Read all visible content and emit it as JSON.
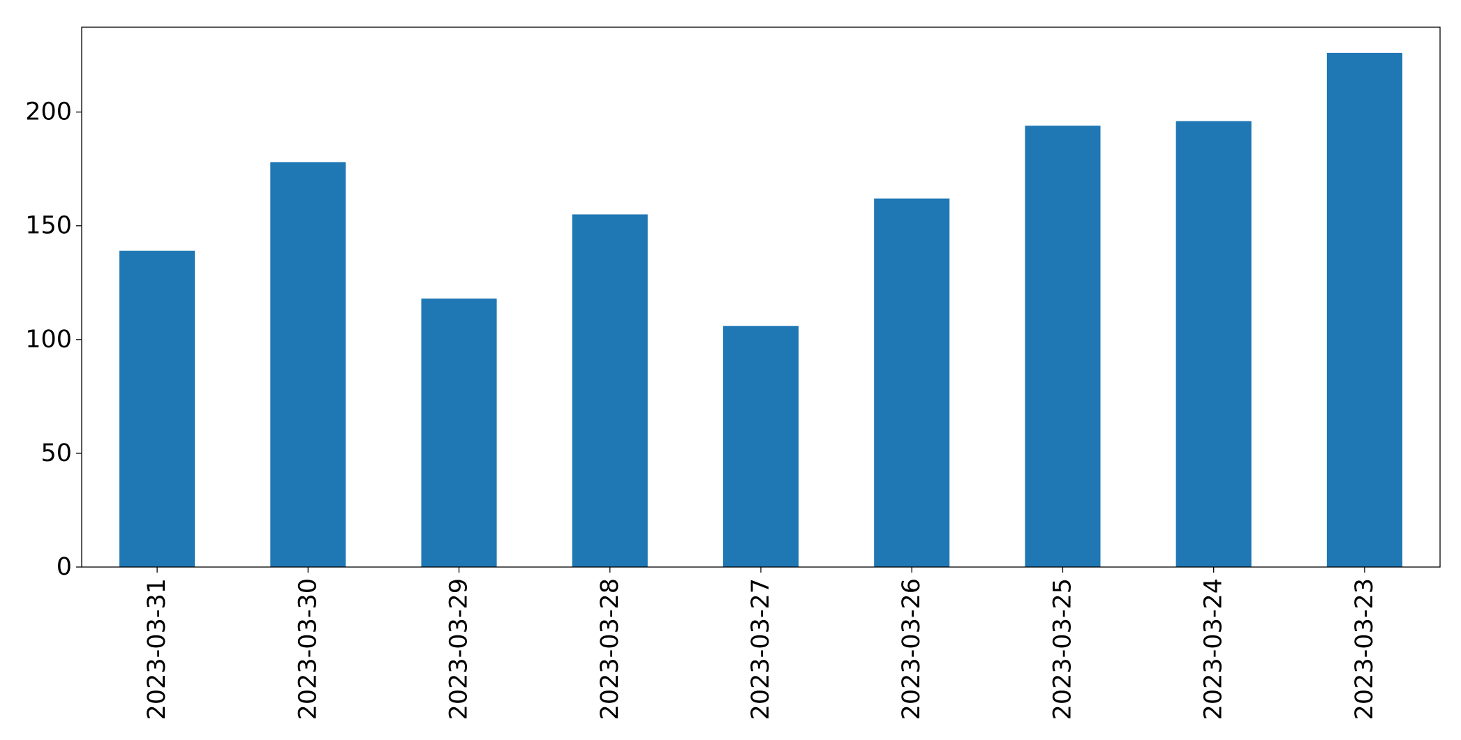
{
  "chart_data": {
    "type": "bar",
    "title": "",
    "xlabel": "",
    "ylabel": "",
    "categories": [
      "2023-03-31",
      "2023-03-30",
      "2023-03-29",
      "2023-03-28",
      "2023-03-27",
      "2023-03-26",
      "2023-03-25",
      "2023-03-24",
      "2023-03-23"
    ],
    "values": [
      139,
      178,
      118,
      155,
      106,
      162,
      194,
      196,
      226
    ],
    "ylim": [
      0,
      237.3
    ],
    "yticks": [
      0,
      50,
      100,
      150,
      200
    ],
    "grid": false,
    "legend": "none",
    "bar_color": "#1f77b4",
    "x_tick_rotation": "vertical"
  }
}
